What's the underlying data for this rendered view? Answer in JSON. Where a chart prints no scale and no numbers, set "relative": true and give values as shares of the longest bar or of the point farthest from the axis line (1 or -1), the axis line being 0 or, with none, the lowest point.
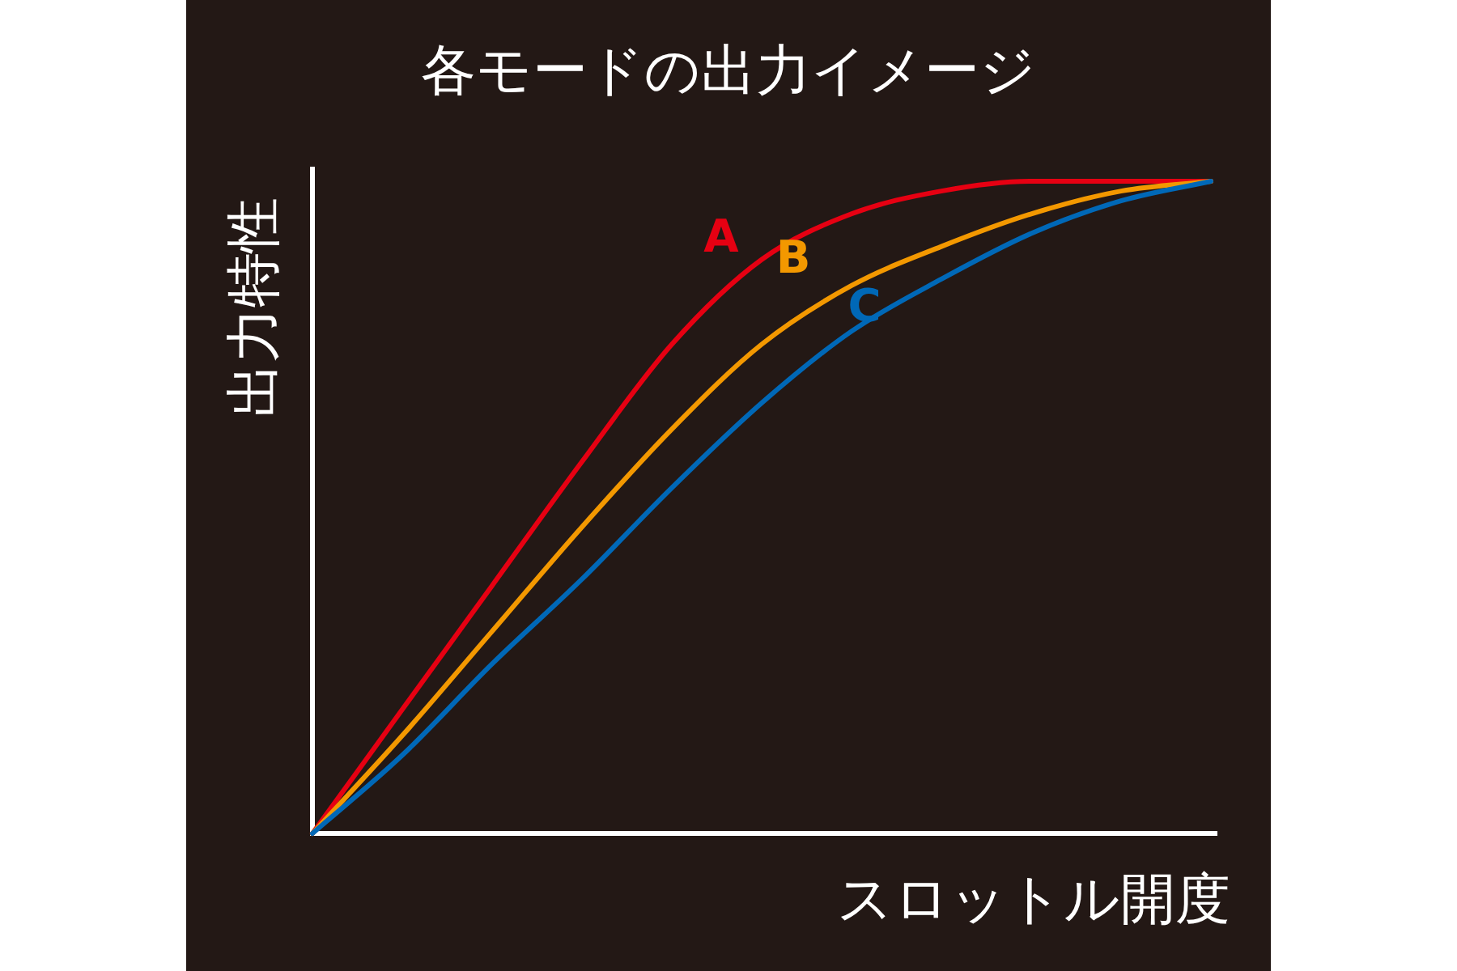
{
  "chart_data": {
    "type": "line",
    "title": "各モードの出力イメージ",
    "xlabel": "スロットル開度",
    "ylabel": "出力特性",
    "relative": true,
    "categories": [
      null,
      null,
      null,
      null,
      null,
      null,
      null,
      null,
      null,
      null,
      null
    ],
    "series": [
      {
        "name": "A",
        "color": "#e60012",
        "values": [
          0,
          0.19,
          0.38,
          0.57,
          0.75,
          0.88,
          0.95,
          0.985,
          1.0,
          1.0,
          1.0
        ]
      },
      {
        "name": "B",
        "color": "#f39800",
        "values": [
          0,
          0.15,
          0.31,
          0.47,
          0.62,
          0.75,
          0.84,
          0.9,
          0.95,
          0.985,
          1.0
        ]
      },
      {
        "name": "C",
        "color": "#0068b7",
        "values": [
          0,
          0.12,
          0.26,
          0.39,
          0.53,
          0.66,
          0.77,
          0.85,
          0.92,
          0.97,
          1.0
        ]
      }
    ]
  }
}
